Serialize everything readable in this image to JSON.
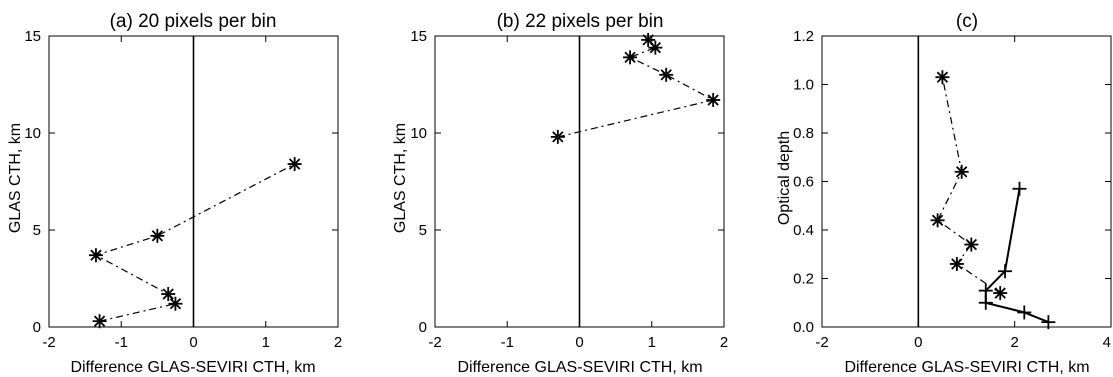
{
  "colors": {
    "line": "#000000",
    "background": "#ffffff"
  },
  "chart_data": [
    {
      "type": "line",
      "title": "(a) 20 pixels per bin",
      "xlabel": "Difference GLAS-SEVIRI CTH, km",
      "ylabel": "GLAS CTH, km",
      "xlim": [
        -2,
        2
      ],
      "ylim": [
        0,
        15
      ],
      "xticks": [
        "-2",
        "-1",
        "0",
        "1",
        "2"
      ],
      "yticks": [
        "0",
        "5",
        "10",
        "15"
      ],
      "reference_line_x": 0,
      "grid": false,
      "series": [
        {
          "marker": "asterisk",
          "line_style": "dash-dot",
          "points": [
            {
              "x": -1.3,
              "y": 0.3
            },
            {
              "x": -0.25,
              "y": 1.2
            },
            {
              "x": -0.35,
              "y": 1.7
            },
            {
              "x": -1.35,
              "y": 3.7
            },
            {
              "x": -0.5,
              "y": 4.7
            },
            {
              "x": 1.4,
              "y": 8.4
            }
          ]
        }
      ]
    },
    {
      "type": "line",
      "title": "(b) 22 pixels per bin",
      "xlabel": "Difference GLAS-SEVIRI CTH, km",
      "ylabel": "GLAS CTH, km",
      "xlim": [
        -2,
        2
      ],
      "ylim": [
        0,
        15
      ],
      "xticks": [
        "-2",
        "-1",
        "0",
        "1",
        "2"
      ],
      "yticks": [
        "0",
        "5",
        "10",
        "15"
      ],
      "reference_line_x": 0,
      "grid": false,
      "series": [
        {
          "marker": "asterisk",
          "line_style": "dash-dot",
          "points": [
            {
              "x": -0.3,
              "y": 9.8
            },
            {
              "x": 1.85,
              "y": 11.7
            },
            {
              "x": 1.2,
              "y": 13.0
            },
            {
              "x": 0.7,
              "y": 13.9
            },
            {
              "x": 1.05,
              "y": 14.4
            },
            {
              "x": 0.95,
              "y": 14.8
            }
          ]
        }
      ]
    },
    {
      "type": "line",
      "title": "(c)",
      "xlabel": "Difference GLAS-SEVIRI CTH, km",
      "ylabel": "Optical depth",
      "xlim": [
        -2,
        4
      ],
      "ylim": [
        0,
        1.2
      ],
      "xticks": [
        "-2",
        "0",
        "2",
        "4"
      ],
      "yticks": [
        "0.0",
        "0.2",
        "0.4",
        "0.6",
        "0.8",
        "1.0",
        "1.2"
      ],
      "reference_line_x": 0,
      "grid": false,
      "series": [
        {
          "marker": "asterisk",
          "line_style": "dash-dot",
          "points": [
            {
              "x": 1.7,
              "y": 0.14
            },
            {
              "x": 0.8,
              "y": 0.26
            },
            {
              "x": 1.1,
              "y": 0.34
            },
            {
              "x": 0.4,
              "y": 0.44
            },
            {
              "x": 0.9,
              "y": 0.64
            },
            {
              "x": 0.5,
              "y": 1.03
            }
          ]
        },
        {
          "marker": "plus",
          "line_style": "solid",
          "points": [
            {
              "x": 2.7,
              "y": 0.02
            },
            {
              "x": 2.2,
              "y": 0.06
            },
            {
              "x": 1.4,
              "y": 0.1
            },
            {
              "x": 1.4,
              "y": 0.15
            },
            {
              "x": 1.8,
              "y": 0.23
            },
            {
              "x": 2.1,
              "y": 0.57
            }
          ]
        }
      ]
    }
  ]
}
